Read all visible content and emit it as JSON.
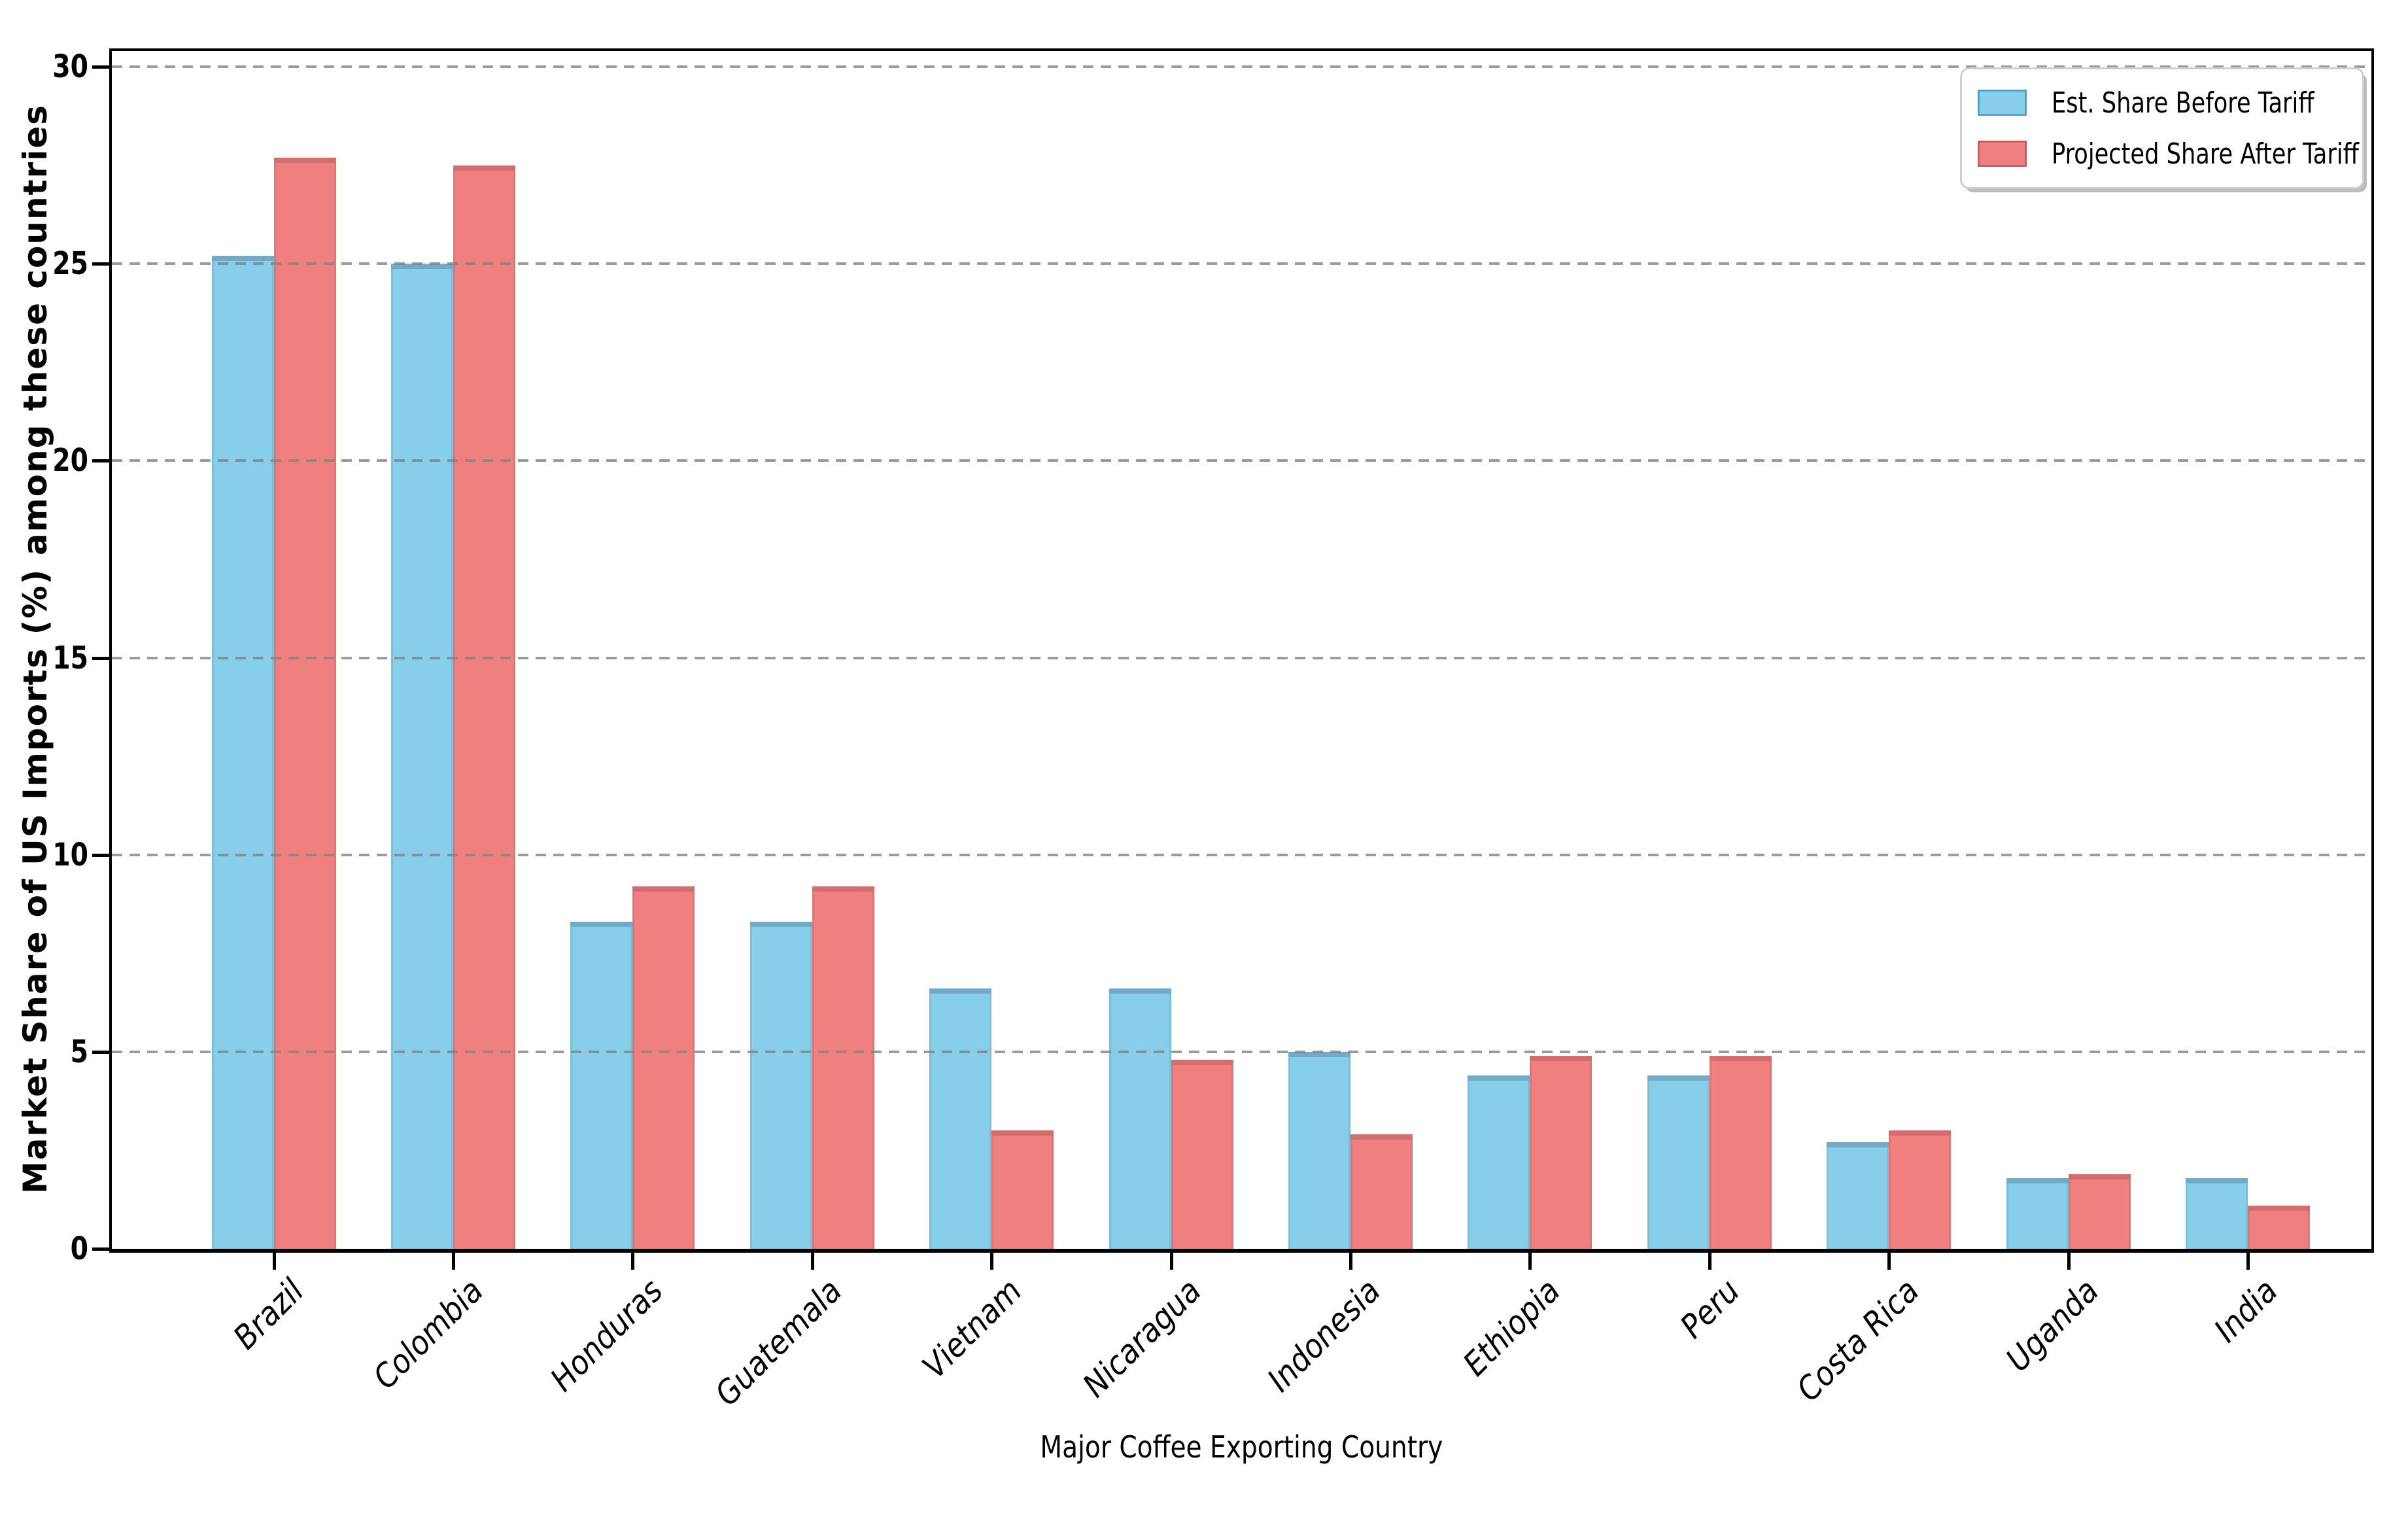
{
  "chart_data": {
    "type": "bar",
    "title": "",
    "xlabel": "Major Coffee Exporting Country",
    "ylabel": "Market Share of US Imports (%) among these countries",
    "categories": [
      "Brazil",
      "Colombia",
      "Honduras",
      "Guatemala",
      "Vietnam",
      "Nicaragua",
      "Indonesia",
      "Ethiopia",
      "Peru",
      "Costa Rica",
      "Uganda",
      "India"
    ],
    "series": [
      {
        "name": "Est. Share Before Tariff",
        "color": "#87CEEB",
        "edge_top": "#74AAC6",
        "legend_edge": "#5A9FC0",
        "values": [
          25.2,
          25.0,
          8.3,
          8.3,
          6.6,
          6.6,
          5.0,
          4.4,
          4.4,
          2.7,
          1.8,
          1.8
        ]
      },
      {
        "name": "Projected Share After Tariff",
        "color": "#F08080",
        "edge_top": "#CF6F6F",
        "legend_edge": "#C06060",
        "values": [
          27.7,
          27.5,
          9.2,
          9.2,
          3.0,
          4.8,
          2.9,
          4.9,
          4.9,
          3.0,
          1.9,
          1.1
        ]
      }
    ],
    "ylim": [
      0,
      30.4
    ],
    "yticks": [
      0,
      5,
      10,
      15,
      20,
      25,
      30
    ],
    "grid": true,
    "grid_style": "dashed",
    "grid_color": "#8e8e8e",
    "legend_position": "upper right",
    "xticklabel_style": "italic, rotated 45deg",
    "background": "#ffffff",
    "spine_color": "#000000"
  }
}
